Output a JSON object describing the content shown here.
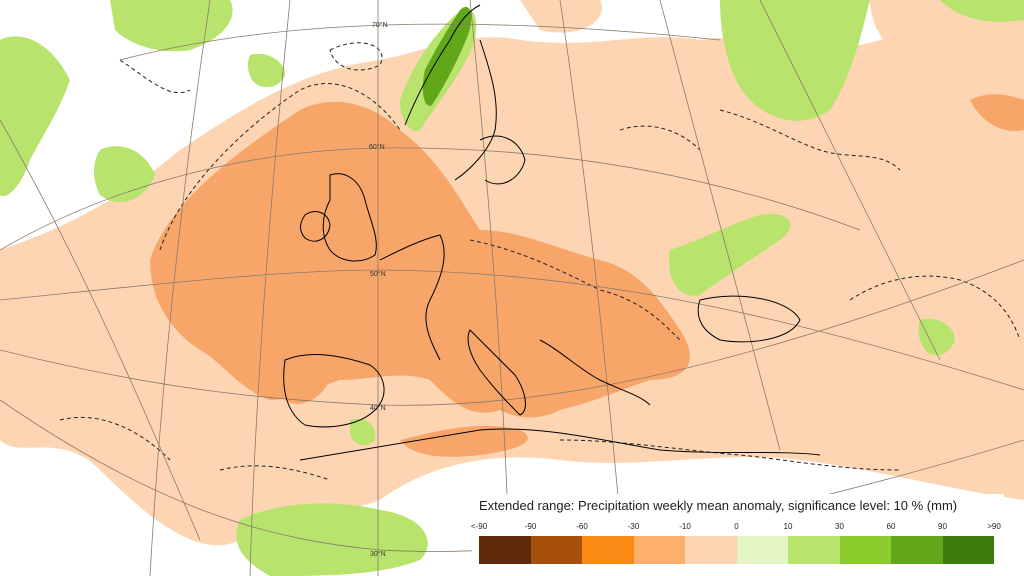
{
  "legend": {
    "title": "Extended range: Precipitation weekly mean anomaly, significance level: 10 % (mm)",
    "ticks": [
      "<-90",
      "-90",
      "-60",
      "-30",
      "-10",
      "0",
      "10",
      "30",
      "60",
      "90",
      ">90"
    ],
    "colors": [
      "#5e2a0a",
      "#a84f0c",
      "#fa8a14",
      "#fdb06c",
      "#fdd5b2",
      "#e5f6c4",
      "#b8e46e",
      "#8ccc2c",
      "#62a61a",
      "#3d7c0e"
    ]
  },
  "graticule": {
    "lat_labels": [
      "70°N",
      "60°N",
      "50°N",
      "40°N",
      "30°N"
    ]
  },
  "palette": {
    "strong_dry": "#f8a56a",
    "weak_dry": "#fdd5b2",
    "wet": "#b8e46e",
    "strong_wet": "#62a61a",
    "coastline": "#000000"
  }
}
